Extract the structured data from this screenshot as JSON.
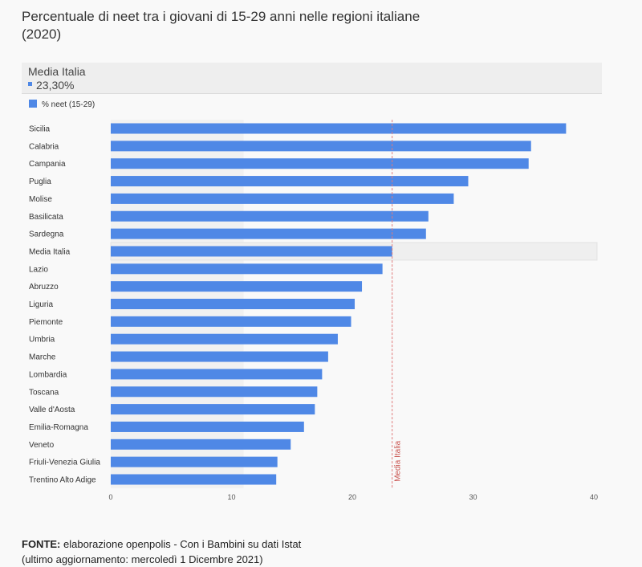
{
  "title": "Percentuale di neet tra i giovani di 15-29 anni nelle regioni italiane (2020)",
  "tooltip": {
    "label": "Media Italia",
    "value": "23,30%"
  },
  "colors": {
    "bar": "#4f88e6",
    "average_line": "#e07a7a",
    "average_text": "#c9534f",
    "highlight_band": "#efefef",
    "left_band": "#f1f1f1"
  },
  "chart_data": {
    "type": "bar",
    "orientation": "horizontal",
    "legend": {
      "label": "% neet (15-29)",
      "position": "top-left"
    },
    "categories": [
      "Sicilia",
      "Calabria",
      "Campania",
      "Puglia",
      "Molise",
      "Basilicata",
      "Sardegna",
      "Media Italia",
      "Lazio",
      "Abruzzo",
      "Liguria",
      "Piemonte",
      "Umbria",
      "Marche",
      "Lombardia",
      "Toscana",
      "Valle d'Aosta",
      "Emilia-Romagna",
      "Veneto",
      "Friuli-Venezia Giulia",
      "Trentino Alto Adige"
    ],
    "values": [
      37.7,
      34.8,
      34.6,
      29.6,
      28.4,
      26.3,
      26.1,
      23.3,
      22.5,
      20.8,
      20.2,
      19.9,
      18.8,
      18.0,
      17.5,
      17.1,
      16.9,
      16.0,
      14.9,
      13.8,
      13.7
    ],
    "highlight_category": "Media Italia",
    "reference_line": {
      "value": 23.3,
      "label": "Media Italia"
    },
    "xlim": [
      0,
      40
    ],
    "xticks": [
      0,
      10,
      20,
      30,
      40
    ],
    "grid": false
  },
  "footer": {
    "source_label": "FONTE:",
    "source_text": " elaborazione openpolis - Con i Bambini su dati Istat",
    "update_text": "(ultimo aggiornamento: mercoledì 1 Dicembre 2021)"
  }
}
